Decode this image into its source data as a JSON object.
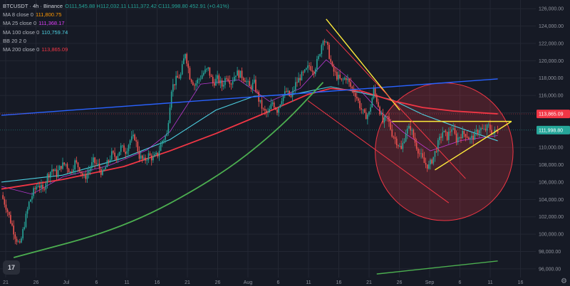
{
  "header": {
    "symbol": "BTCUSDT · 4h · Binance",
    "ohlc": "O111,545.88 H112,032.11 L111,372.42 C111,998.80 452.91 (+0.41%)"
  },
  "indicators": [
    {
      "label": "MA 8 close 0",
      "value": "111,800.75",
      "color": "#ff9800"
    },
    {
      "label": "MA 25 close 0",
      "value": "111,368.17",
      "color": "#e040fb"
    },
    {
      "label": "MA 100 close 0",
      "value": "110,759.74",
      "color": "#4dd0e1"
    },
    {
      "label": "BB 20 2 0",
      "value": "",
      "color": "#9598a1"
    },
    {
      "label": "MA 200 close 0",
      "value": "113,865.09",
      "color": "#f23645"
    }
  ],
  "colors": {
    "background": "#161a25",
    "grid": "#232733",
    "candle_up": "#26a69a",
    "candle_down": "#ef5350",
    "ma200": "#f23645",
    "ma100": "#4dd0e1",
    "ma25": "#e040fb",
    "trend_blue": "#2962ff",
    "trend_green": "#4caf50",
    "trend_yellow": "#ffeb3b"
  },
  "chart_data": {
    "type": "candlestick",
    "ylim": [
      95000,
      127000
    ],
    "y_ticks": [
      "126,000.00",
      "124,000.00",
      "122,000.00",
      "120,000.00",
      "118,000.00",
      "116,000.00",
      "114,000.00",
      "110,000.00",
      "108,000.00",
      "106,000.00",
      "104,000.00",
      "102,000.00",
      "100,000.00",
      "98,000.00",
      "96,000.00"
    ],
    "y_tick_values": [
      126000,
      124000,
      122000,
      120000,
      118000,
      116000,
      114000,
      110000,
      108000,
      106000,
      104000,
      102000,
      100000,
      98000,
      96000
    ],
    "x_ticks": [
      "21",
      "26",
      "Jul",
      "6",
      "11",
      "16",
      "21",
      "26",
      "Aug",
      "6",
      "11",
      "16",
      "21",
      "26",
      "Sep",
      "6",
      "11",
      "16"
    ],
    "price_tags": [
      {
        "label": "113,865.09",
        "value": 113865.09,
        "color": "#f23645"
      },
      {
        "label": "111,998.80",
        "value": 111998.8,
        "color": "#26a69a"
      }
    ],
    "price_path": [
      [
        0,
        104500
      ],
      [
        3,
        103200
      ],
      [
        6,
        101500
      ],
      [
        9,
        99800
      ],
      [
        12,
        98600
      ],
      [
        15,
        101200
      ],
      [
        18,
        103600
      ],
      [
        21,
        104900
      ],
      [
        24,
        105800
      ],
      [
        27,
        105000
      ],
      [
        30,
        106700
      ],
      [
        33,
        107500
      ],
      [
        36,
        106900
      ],
      [
        39,
        107900
      ],
      [
        42,
        108100
      ],
      [
        45,
        107100
      ],
      [
        48,
        108300
      ],
      [
        51,
        107600
      ],
      [
        54,
        106400
      ],
      [
        57,
        107300
      ],
      [
        60,
        108400
      ],
      [
        63,
        107900
      ],
      [
        66,
        106900
      ],
      [
        69,
        108100
      ],
      [
        72,
        109200
      ],
      [
        75,
        108900
      ],
      [
        78,
        110000
      ],
      [
        81,
        109600
      ],
      [
        84,
        110800
      ],
      [
        87,
        111200
      ],
      [
        90,
        109000
      ],
      [
        93,
        108400
      ],
      [
        96,
        109100
      ],
      [
        99,
        108700
      ],
      [
        102,
        109200
      ],
      [
        105,
        110800
      ],
      [
        108,
        111500
      ],
      [
        111,
        116800
      ],
      [
        114,
        117800
      ],
      [
        117,
        118300
      ],
      [
        120,
        121000
      ],
      [
        123,
        118200
      ],
      [
        126,
        117200
      ],
      [
        129,
        117900
      ],
      [
        132,
        118600
      ],
      [
        135,
        119000
      ],
      [
        138,
        117400
      ],
      [
        141,
        117900
      ],
      [
        144,
        117100
      ],
      [
        147,
        118300
      ],
      [
        150,
        117500
      ],
      [
        153,
        118600
      ],
      [
        156,
        118400
      ],
      [
        159,
        117900
      ],
      [
        162,
        116900
      ],
      [
        165,
        117400
      ],
      [
        168,
        115500
      ],
      [
        171,
        114200
      ],
      [
        174,
        113800
      ],
      [
        177,
        115200
      ],
      [
        180,
        114300
      ],
      [
        183,
        115700
      ],
      [
        186,
        116400
      ],
      [
        189,
        115700
      ],
      [
        192,
        117300
      ],
      [
        195,
        118100
      ],
      [
        198,
        118600
      ],
      [
        201,
        119400
      ],
      [
        204,
        118900
      ],
      [
        207,
        120300
      ],
      [
        210,
        122700
      ],
      [
        213,
        121400
      ],
      [
        216,
        119000
      ],
      [
        219,
        118200
      ],
      [
        222,
        117600
      ],
      [
        225,
        118100
      ],
      [
        228,
        117000
      ],
      [
        231,
        116200
      ],
      [
        234,
        114800
      ],
      [
        237,
        113600
      ],
      [
        240,
        113900
      ],
      [
        243,
        116600
      ],
      [
        246,
        114900
      ],
      [
        249,
        112900
      ],
      [
        252,
        113400
      ],
      [
        255,
        111600
      ],
      [
        258,
        110700
      ],
      [
        261,
        109700
      ],
      [
        264,
        111800
      ],
      [
        267,
        112300
      ],
      [
        270,
        110600
      ],
      [
        273,
        109300
      ],
      [
        276,
        108200
      ],
      [
        279,
        107800
      ],
      [
        282,
        108900
      ],
      [
        285,
        110400
      ],
      [
        288,
        111800
      ],
      [
        291,
        111200
      ],
      [
        294,
        112300
      ],
      [
        297,
        110900
      ],
      [
        300,
        111500
      ],
      [
        303,
        111600
      ],
      [
        306,
        110900
      ],
      [
        309,
        111400
      ],
      [
        312,
        112200
      ],
      [
        315,
        111900
      ],
      [
        318,
        112400
      ],
      [
        321,
        111600
      ],
      [
        324,
        112000
      ]
    ],
    "ma200": [
      [
        0,
        105200
      ],
      [
        40,
        106300
      ],
      [
        80,
        107800
      ],
      [
        110,
        109600
      ],
      [
        140,
        111600
      ],
      [
        170,
        113800
      ],
      [
        200,
        116100
      ],
      [
        215,
        116800
      ],
      [
        235,
        116500
      ],
      [
        255,
        115400
      ],
      [
        275,
        114600
      ],
      [
        295,
        114200
      ],
      [
        324,
        113865
      ]
    ],
    "ma100": [
      [
        0,
        106000
      ],
      [
        40,
        106800
      ],
      [
        80,
        108800
      ],
      [
        110,
        110900
      ],
      [
        140,
        114300
      ],
      [
        165,
        115900
      ],
      [
        190,
        116100
      ],
      [
        215,
        117000
      ],
      [
        235,
        116300
      ],
      [
        255,
        115500
      ],
      [
        275,
        113800
      ],
      [
        295,
        112500
      ],
      [
        324,
        110760
      ]
    ],
    "ma25": [
      [
        0,
        105500
      ],
      [
        20,
        104600
      ],
      [
        40,
        106600
      ],
      [
        70,
        107900
      ],
      [
        95,
        109700
      ],
      [
        110,
        111800
      ],
      [
        130,
        117300
      ],
      [
        155,
        117800
      ],
      [
        175,
        115300
      ],
      [
        195,
        116800
      ],
      [
        212,
        120100
      ],
      [
        228,
        117800
      ],
      [
        245,
        114500
      ],
      [
        262,
        111800
      ],
      [
        280,
        109600
      ],
      [
        300,
        110800
      ],
      [
        324,
        111370
      ]
    ],
    "trendlines": [
      {
        "name": "blue-trend",
        "color": "#2962ff",
        "points": [
          [
            0,
            113700
          ],
          [
            324,
            117900
          ]
        ]
      },
      {
        "name": "green-curve",
        "color": "#4caf50",
        "curve": true,
        "points": [
          [
            8,
            97300
          ],
          [
            80,
            100700
          ],
          [
            140,
            106400
          ],
          [
            180,
            111900
          ],
          [
            210,
            117500
          ]
        ]
      },
      {
        "name": "green-lower",
        "color": "#4caf50",
        "points": [
          [
            245,
            95400
          ],
          [
            324,
            96900
          ]
        ]
      },
      {
        "name": "yellow-desc",
        "color": "#ffeb3b",
        "points": [
          [
            212,
            124800
          ],
          [
            260,
            114300
          ]
        ]
      },
      {
        "name": "yellow-top",
        "color": "#ffeb3b",
        "points": [
          [
            255,
            113000
          ],
          [
            333,
            113000
          ]
        ]
      },
      {
        "name": "yellow-rising",
        "color": "#ffeb3b",
        "points": [
          [
            283,
            107400
          ],
          [
            333,
            113000
          ]
        ]
      },
      {
        "name": "red-channel-top",
        "color": "#f23645",
        "points": [
          [
            212,
            123600
          ],
          [
            303,
            106400
          ]
        ]
      },
      {
        "name": "red-channel-bot",
        "color": "#f23645",
        "points": [
          [
            200,
            115400
          ],
          [
            292,
            103600
          ]
        ]
      }
    ],
    "circle": {
      "center": [
        289,
        109500
      ],
      "radius_x": 45,
      "color": "#f23645"
    }
  }
}
